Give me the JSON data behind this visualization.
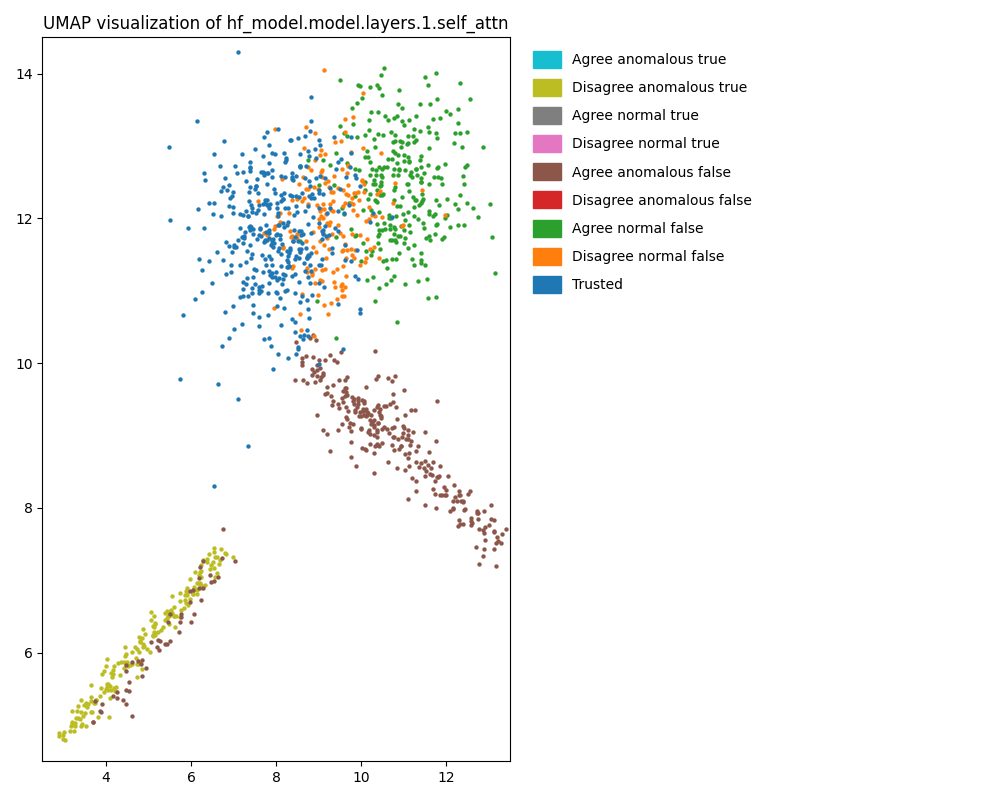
{
  "title": "UMAP visualization of hf_model.model.layers.1.self_attn",
  "xlim": [
    2.5,
    13.5
  ],
  "ylim": [
    4.5,
    14.5
  ],
  "xticks": [
    4,
    6,
    8,
    10,
    12
  ],
  "yticks": [
    6,
    8,
    10,
    12,
    14
  ],
  "categories": [
    "Agree anomalous true",
    "Disagree anomalous true",
    "Agree normal true",
    "Disagree normal true",
    "Agree anomalous false",
    "Disagree anomalous false",
    "Agree normal false",
    "Disagree normal false",
    "Trusted"
  ],
  "colors": {
    "Agree anomalous true": "#17becf",
    "Disagree anomalous true": "#bcbd22",
    "Agree normal true": "#7f7f7f",
    "Disagree normal true": "#e377c2",
    "Agree anomalous false": "#8c564b",
    "Disagree anomalous false": "#d62728",
    "Agree normal false": "#2ca02c",
    "Disagree normal false": "#ff7f0e",
    "Trusted": "#1f77b4"
  },
  "background_color": "#ffffff",
  "figsize": [
    10,
    8
  ],
  "dpi": 100
}
